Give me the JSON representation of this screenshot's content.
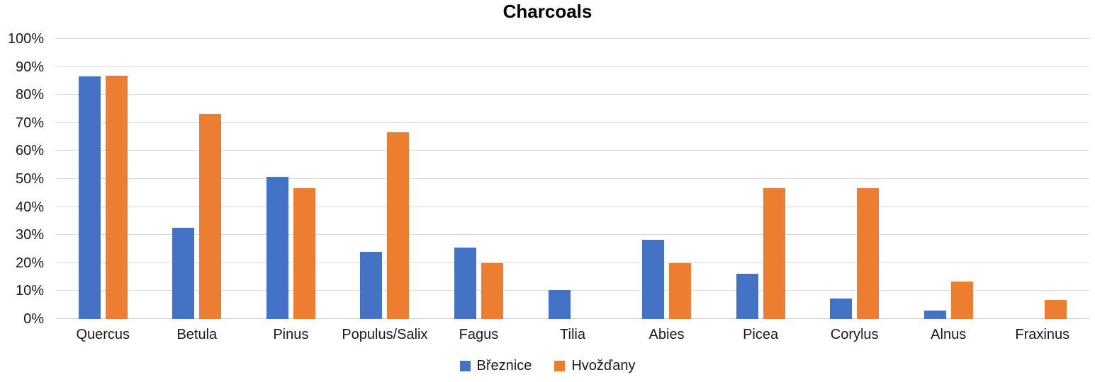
{
  "chart_data": {
    "type": "bar",
    "title": "Charcoals",
    "categories": [
      "Quercus",
      "Betula",
      "Pinus",
      "Populus/Salix",
      "Fagus",
      "Tilia",
      "Abies",
      "Picea",
      "Corylus",
      "Alnus",
      "Fraxinus"
    ],
    "series": [
      {
        "name": "Březnice",
        "color": "#4472C4",
        "values": [
          86.6,
          32.7,
          50.7,
          23.9,
          25.4,
          10.3,
          28.4,
          16.1,
          7.4,
          3.0,
          0
        ]
      },
      {
        "name": "Hvožďany",
        "color": "#ED7D31",
        "values": [
          86.9,
          73.3,
          46.7,
          66.7,
          20.0,
          0,
          20.0,
          46.7,
          46.7,
          13.3,
          6.7
        ]
      }
    ],
    "ylabel": "",
    "xlabel": "",
    "ylim": [
      0,
      100
    ],
    "yticks": [
      0,
      10,
      20,
      30,
      40,
      50,
      60,
      70,
      80,
      90,
      100
    ],
    "y_tick_suffix": "%",
    "grid": true,
    "gridline_color": "#d9d9d9",
    "axis_line_color": "#c9c9c9",
    "text_color": "#1a1a1a",
    "legend_position": "bottom"
  }
}
